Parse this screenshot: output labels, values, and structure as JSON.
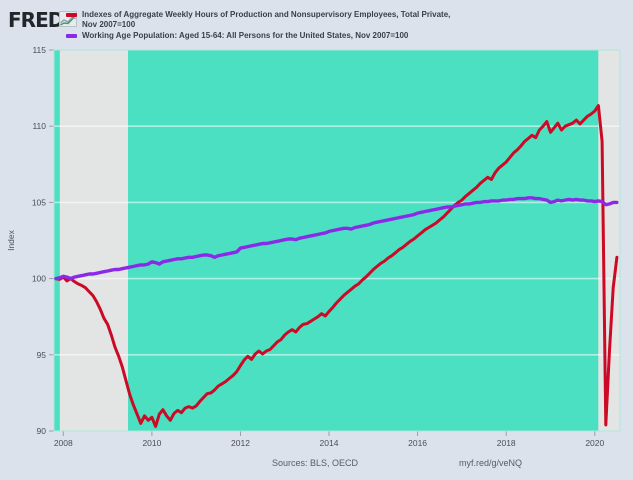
{
  "header": {
    "logo_text": "FRED",
    "registered": "®",
    "legend": [
      {
        "line1": "Indexes of Aggregate Weekly Hours of Production and Nonsupervisory Employees, Total Private,",
        "line2": "Nov 2007=100"
      },
      {
        "line1": "Working Age Population: Aged 15-64: All Persons for the United States, Nov 2007=100"
      }
    ]
  },
  "footer": {
    "sources": "Sources: BLS, OECD",
    "link": "myf.red/g/veNQ"
  },
  "chart_data": {
    "type": "line",
    "ylabel": "Index",
    "ylim": [
      90,
      115
    ],
    "xlim": [
      2007.79,
      2020.57
    ],
    "y_ticks": [
      90,
      95,
      100,
      105,
      110,
      115
    ],
    "x_ticks": [
      2008,
      2010,
      2012,
      2014,
      2016,
      2018,
      2020
    ],
    "grid": "horizontal",
    "legend_position": "top-left",
    "plot_bg": "#4ce0c3",
    "band_color": "#e3e4e4",
    "grid_color": "rgba(255,255,255,0.55)",
    "recession_bands": [
      [
        2007.92,
        2009.46
      ],
      [
        2020.08,
        2020.57
      ]
    ],
    "series": [
      {
        "id": "aggregate-weekly-hours",
        "name": "Indexes of Aggregate Weekly Hours of Production and Nonsupervisory Employees, Total Private, Nov 2007=100",
        "color": "#cb0a25",
        "width": 3,
        "start": 2007.8333,
        "step_months": 1,
        "values": [
          100.0,
          99.95,
          100.1,
          99.85,
          100.0,
          99.8,
          99.65,
          99.55,
          99.4,
          99.15,
          98.9,
          98.5,
          98.0,
          97.4,
          97.0,
          96.3,
          95.5,
          94.9,
          94.2,
          93.3,
          92.4,
          91.7,
          91.1,
          90.5,
          91.0,
          90.7,
          90.9,
          90.3,
          91.1,
          91.4,
          91.0,
          90.7,
          91.15,
          91.35,
          91.2,
          91.5,
          91.6,
          91.5,
          91.65,
          91.95,
          92.2,
          92.45,
          92.5,
          92.7,
          92.95,
          93.1,
          93.25,
          93.45,
          93.65,
          93.9,
          94.3,
          94.65,
          94.9,
          94.7,
          95.05,
          95.25,
          95.05,
          95.25,
          95.35,
          95.6,
          95.85,
          96.0,
          96.3,
          96.5,
          96.65,
          96.5,
          96.8,
          97.0,
          97.05,
          97.2,
          97.35,
          97.5,
          97.7,
          97.55,
          97.85,
          98.1,
          98.4,
          98.65,
          98.9,
          99.1,
          99.3,
          99.5,
          99.65,
          99.9,
          100.1,
          100.35,
          100.6,
          100.8,
          101.0,
          101.15,
          101.35,
          101.5,
          101.7,
          101.9,
          102.05,
          102.25,
          102.45,
          102.6,
          102.8,
          103.0,
          103.2,
          103.35,
          103.5,
          103.65,
          103.85,
          104.05,
          104.3,
          104.55,
          104.8,
          105.0,
          105.15,
          105.4,
          105.6,
          105.8,
          106.0,
          106.25,
          106.45,
          106.65,
          106.5,
          106.95,
          107.25,
          107.45,
          107.65,
          107.95,
          108.25,
          108.45,
          108.7,
          109.0,
          109.2,
          109.4,
          109.25,
          109.75,
          110.0,
          110.3,
          109.6,
          109.9,
          110.2,
          109.75,
          110.0,
          110.1,
          110.2,
          110.4,
          110.15,
          110.4,
          110.65,
          110.8,
          111.0,
          111.35,
          109.0,
          90.4,
          95.3,
          99.4,
          101.4
        ]
      },
      {
        "id": "working-age-population",
        "name": "Working Age Population: Aged 15-64: All Persons for the United States, Nov 2007=100",
        "color": "#8b2ae6",
        "width": 3.4,
        "start": 2007.8333,
        "step_months": 1,
        "values": [
          100.0,
          100.05,
          100.15,
          100.1,
          100.0,
          100.1,
          100.15,
          100.2,
          100.25,
          100.3,
          100.3,
          100.35,
          100.4,
          100.45,
          100.5,
          100.55,
          100.6,
          100.6,
          100.65,
          100.7,
          100.75,
          100.8,
          100.85,
          100.9,
          100.9,
          100.95,
          101.1,
          101.05,
          100.95,
          101.1,
          101.15,
          101.2,
          101.25,
          101.3,
          101.3,
          101.35,
          101.4,
          101.4,
          101.45,
          101.5,
          101.55,
          101.55,
          101.5,
          101.4,
          101.5,
          101.55,
          101.6,
          101.65,
          101.7,
          101.75,
          102.0,
          102.05,
          102.1,
          102.15,
          102.2,
          102.25,
          102.3,
          102.3,
          102.35,
          102.4,
          102.45,
          102.5,
          102.55,
          102.6,
          102.6,
          102.55,
          102.65,
          102.7,
          102.75,
          102.8,
          102.85,
          102.9,
          102.95,
          103.0,
          103.1,
          103.15,
          103.2,
          103.25,
          103.3,
          103.3,
          103.25,
          103.35,
          103.4,
          103.45,
          103.5,
          103.55,
          103.65,
          103.7,
          103.75,
          103.8,
          103.85,
          103.9,
          103.95,
          104.0,
          104.05,
          104.1,
          104.15,
          104.2,
          104.3,
          104.35,
          104.4,
          104.45,
          104.5,
          104.55,
          104.6,
          104.65,
          104.7,
          104.7,
          104.75,
          104.8,
          104.85,
          104.9,
          104.9,
          104.95,
          105.0,
          105.0,
          105.05,
          105.05,
          105.1,
          105.1,
          105.1,
          105.15,
          105.15,
          105.2,
          105.2,
          105.25,
          105.25,
          105.25,
          105.3,
          105.3,
          105.25,
          105.25,
          105.2,
          105.15,
          105.0,
          105.05,
          105.15,
          105.1,
          105.15,
          105.2,
          105.15,
          105.2,
          105.15,
          105.15,
          105.1,
          105.1,
          105.05,
          105.1,
          105.05,
          104.85,
          104.9,
          105.0,
          105.0
        ]
      }
    ]
  }
}
